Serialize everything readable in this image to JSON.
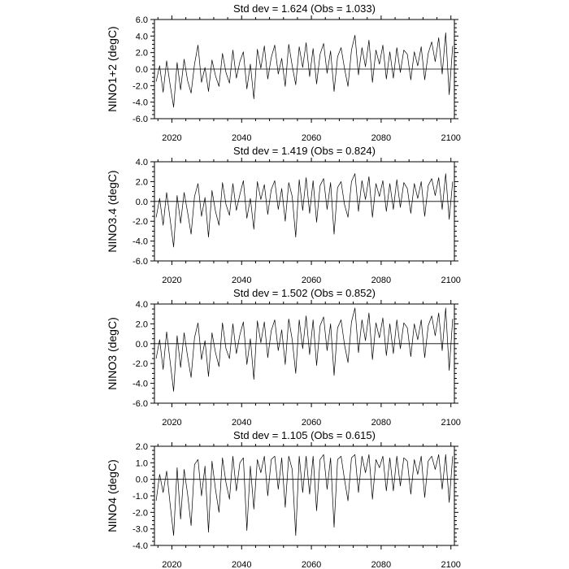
{
  "chart_data": [
    {
      "type": "line",
      "title": "Std dev = 1.624 (Obs = 1.033)",
      "ylabel": "NINO1+2 (degC)",
      "xlabel": "",
      "xlim": [
        2015,
        2101
      ],
      "ylim": [
        -6.0,
        6.0
      ],
      "yticks": [
        -6.0,
        -4.0,
        -2.0,
        0.0,
        2.0,
        4.0,
        6.0
      ],
      "ytick_labels": [
        "-6.0",
        "-4.0",
        "-2.0",
        "0.0",
        "2.0",
        "4.0",
        "6.0"
      ],
      "xticks": [
        2020,
        2040,
        2060,
        2080,
        2100
      ],
      "xtick_labels": [
        "2020",
        "2040",
        "2060",
        "2080",
        "2100"
      ],
      "zero_line": true,
      "x": [
        2015.5,
        2016.5,
        2017.5,
        2018.5,
        2019.5,
        2020.5,
        2021.5,
        2022.5,
        2023.5,
        2024.5,
        2025.5,
        2026.5,
        2027.5,
        2028.5,
        2029.5,
        2030.5,
        2031.5,
        2032.5,
        2033.5,
        2034.5,
        2035.5,
        2036.5,
        2037.5,
        2038.5,
        2039.5,
        2040.5,
        2041.5,
        2042.5,
        2043.5,
        2044.5,
        2045.5,
        2046.5,
        2047.5,
        2048.5,
        2049.5,
        2050.5,
        2051.5,
        2052.5,
        2053.5,
        2054.5,
        2055.5,
        2056.5,
        2057.5,
        2058.5,
        2059.5,
        2060.5,
        2061.5,
        2062.5,
        2063.5,
        2064.5,
        2065.5,
        2066.5,
        2067.5,
        2068.5,
        2069.5,
        2070.5,
        2071.5,
        2072.5,
        2073.5,
        2074.5,
        2075.5,
        2076.5,
        2077.5,
        2078.5,
        2079.5,
        2080.5,
        2081.5,
        2082.5,
        2083.5,
        2084.5,
        2085.5,
        2086.5,
        2087.5,
        2088.5,
        2089.5,
        2090.5,
        2091.5,
        2092.5,
        2093.5,
        2094.5,
        2095.5,
        2096.5,
        2097.5,
        2098.5,
        2099.5,
        2100.5
      ],
      "values": [
        -1.5,
        0.4,
        -2.8,
        1.0,
        -1.9,
        -4.6,
        0.8,
        -2.5,
        1.2,
        -1.4,
        -2.9,
        0.6,
        2.9,
        -1.6,
        0.2,
        -2.7,
        1.1,
        -0.8,
        -2.1,
        1.9,
        -0.4,
        -1.7,
        2.3,
        -1.1,
        0.9,
        2.1,
        -2.4,
        0.6,
        -3.6,
        2.4,
        0.1,
        2.8,
        -1.2,
        1.4,
        2.9,
        -0.6,
        1.3,
        -2.1,
        3.0,
        0.4,
        -1.9,
        2.7,
        0.2,
        3.2,
        -0.9,
        2.5,
        -1.8,
        1.8,
        3.1,
        -0.5,
        2.2,
        -2.7,
        1.5,
        2.6,
        0.1,
        -2.1,
        2.3,
        4.1,
        -0.7,
        2.6,
        0.3,
        3.5,
        -1.6,
        2.3,
        0.6,
        2.9,
        -1.2,
        2.1,
        -1.1,
        2.6,
        -0.4,
        2.3,
        1.8,
        -1.3,
        2.1,
        0.4,
        2.7,
        -1.3,
        1.9,
        3.3,
        0.9,
        3.8,
        -0.6,
        4.4,
        -3.1,
        2.8
      ]
    },
    {
      "type": "line",
      "title": "Std dev = 1.419 (Obs = 0.824)",
      "ylabel": "NINO3.4 (degC)",
      "xlabel": "",
      "xlim": [
        2015,
        2101
      ],
      "ylim": [
        -6.0,
        4.0
      ],
      "yticks": [
        -6.0,
        -4.0,
        -2.0,
        0.0,
        2.0,
        4.0
      ],
      "ytick_labels": [
        "-6.0",
        "-4.0",
        "-2.0",
        "0.0",
        "2.0",
        "4.0"
      ],
      "xticks": [
        2020,
        2040,
        2060,
        2080,
        2100
      ],
      "xtick_labels": [
        "2020",
        "2040",
        "2060",
        "2080",
        "2100"
      ],
      "zero_line": true,
      "x": [
        2015.5,
        2016.5,
        2017.5,
        2018.5,
        2019.5,
        2020.5,
        2021.5,
        2022.5,
        2023.5,
        2024.5,
        2025.5,
        2026.5,
        2027.5,
        2028.5,
        2029.5,
        2030.5,
        2031.5,
        2032.5,
        2033.5,
        2034.5,
        2035.5,
        2036.5,
        2037.5,
        2038.5,
        2039.5,
        2040.5,
        2041.5,
        2042.5,
        2043.5,
        2044.5,
        2045.5,
        2046.5,
        2047.5,
        2048.5,
        2049.5,
        2050.5,
        2051.5,
        2052.5,
        2053.5,
        2054.5,
        2055.5,
        2056.5,
        2057.5,
        2058.5,
        2059.5,
        2060.5,
        2061.5,
        2062.5,
        2063.5,
        2064.5,
        2065.5,
        2066.5,
        2067.5,
        2068.5,
        2069.5,
        2070.5,
        2071.5,
        2072.5,
        2073.5,
        2074.5,
        2075.5,
        2076.5,
        2077.5,
        2078.5,
        2079.5,
        2080.5,
        2081.5,
        2082.5,
        2083.5,
        2084.5,
        2085.5,
        2086.5,
        2087.5,
        2088.5,
        2089.5,
        2090.5,
        2091.5,
        2092.5,
        2093.5,
        2094.5,
        2095.5,
        2096.5,
        2097.5,
        2098.5,
        2099.5,
        2100.5
      ],
      "values": [
        -1.6,
        0.3,
        -2.4,
        0.9,
        -1.8,
        -4.6,
        0.6,
        -2.2,
        0.9,
        -1.1,
        -3.3,
        0.5,
        1.8,
        -1.5,
        0.4,
        -3.6,
        1.1,
        -1.0,
        -2.4,
        1.9,
        -0.3,
        -1.4,
        1.8,
        -0.9,
        0.7,
        2.1,
        -1.7,
        0.3,
        -2.8,
        2.0,
        0.2,
        1.7,
        -1.3,
        1.2,
        2.1,
        -0.8,
        1.3,
        -2.0,
        1.9,
        0.5,
        -3.6,
        2.2,
        -0.9,
        2.4,
        -1.2,
        2.1,
        -2.1,
        1.6,
        2.3,
        -0.8,
        1.9,
        -3.3,
        1.4,
        2.0,
        -0.3,
        -1.6,
        2.0,
        2.8,
        -1.0,
        2.1,
        0.2,
        2.5,
        -1.6,
        1.8,
        0.5,
        2.1,
        -1.0,
        1.8,
        -0.8,
        2.2,
        -0.6,
        1.9,
        1.3,
        -1.2,
        1.8,
        0.3,
        2.0,
        -1.5,
        1.6,
        2.3,
        0.6,
        2.4,
        -0.8,
        2.8,
        -1.8,
        2.0
      ]
    },
    {
      "type": "line",
      "title": "Std dev = 1.502 (Obs = 0.852)",
      "ylabel": "NINO3 (degC)",
      "xlabel": "",
      "xlim": [
        2015,
        2101
      ],
      "ylim": [
        -6.0,
        4.0
      ],
      "yticks": [
        -6.0,
        -4.0,
        -2.0,
        0.0,
        2.0,
        4.0
      ],
      "ytick_labels": [
        "-6.0",
        "-4.0",
        "-2.0",
        "0.0",
        "2.0",
        "4.0"
      ],
      "xticks": [
        2020,
        2040,
        2060,
        2080,
        2100
      ],
      "xtick_labels": [
        "2020",
        "2040",
        "2060",
        "2080",
        "2100"
      ],
      "zero_line": true,
      "x": [
        2015.5,
        2016.5,
        2017.5,
        2018.5,
        2019.5,
        2020.5,
        2021.5,
        2022.5,
        2023.5,
        2024.5,
        2025.5,
        2026.5,
        2027.5,
        2028.5,
        2029.5,
        2030.5,
        2031.5,
        2032.5,
        2033.5,
        2034.5,
        2035.5,
        2036.5,
        2037.5,
        2038.5,
        2039.5,
        2040.5,
        2041.5,
        2042.5,
        2043.5,
        2044.5,
        2045.5,
        2046.5,
        2047.5,
        2048.5,
        2049.5,
        2050.5,
        2051.5,
        2052.5,
        2053.5,
        2054.5,
        2055.5,
        2056.5,
        2057.5,
        2058.5,
        2059.5,
        2060.5,
        2061.5,
        2062.5,
        2063.5,
        2064.5,
        2065.5,
        2066.5,
        2067.5,
        2068.5,
        2069.5,
        2070.5,
        2071.5,
        2072.5,
        2073.5,
        2074.5,
        2075.5,
        2076.5,
        2077.5,
        2078.5,
        2079.5,
        2080.5,
        2081.5,
        2082.5,
        2083.5,
        2084.5,
        2085.5,
        2086.5,
        2087.5,
        2088.5,
        2089.5,
        2090.5,
        2091.5,
        2092.5,
        2093.5,
        2094.5,
        2095.5,
        2096.5,
        2097.5,
        2098.5,
        2099.5,
        2100.5
      ],
      "values": [
        -1.5,
        0.4,
        -2.6,
        1.2,
        -1.8,
        -4.8,
        0.8,
        -2.4,
        1.1,
        -1.3,
        -3.4,
        0.6,
        2.1,
        -1.6,
        0.3,
        -3.3,
        1.1,
        -0.9,
        -2.3,
        2.1,
        -0.5,
        -1.5,
        2.0,
        -1.0,
        0.9,
        2.2,
        -2.1,
        0.5,
        -3.6,
        2.3,
        0.1,
        2.2,
        -1.4,
        1.3,
        2.4,
        -0.7,
        1.4,
        -2.1,
        2.5,
        0.4,
        -3.0,
        2.4,
        -0.5,
        2.8,
        -1.1,
        2.4,
        -2.2,
        1.8,
        2.7,
        -0.7,
        2.0,
        -3.2,
        1.6,
        2.4,
        -0.1,
        -1.9,
        2.2,
        3.6,
        -0.9,
        2.4,
        0.3,
        3.1,
        -1.6,
        2.1,
        0.6,
        2.6,
        -1.2,
        2.0,
        -1.0,
        2.4,
        -0.5,
        2.1,
        1.6,
        -1.3,
        2.0,
        0.4,
        2.4,
        -1.4,
        1.8,
        2.8,
        0.8,
        3.1,
        -0.7,
        3.6,
        -2.7,
        2.5
      ]
    },
    {
      "type": "line",
      "title": "Std dev = 1.105 (Obs = 0.615)",
      "ylabel": "NINO4 (degC)",
      "xlabel": "",
      "xlim": [
        2015,
        2101
      ],
      "ylim": [
        -4.0,
        2.0
      ],
      "yticks": [
        -4.0,
        -3.0,
        -2.0,
        -1.0,
        0.0,
        1.0,
        2.0
      ],
      "ytick_labels": [
        "-4.0",
        "-3.0",
        "-2.0",
        "-1.0",
        "0.0",
        "1.0",
        "2.0"
      ],
      "xticks": [
        2020,
        2040,
        2060,
        2080,
        2100
      ],
      "xtick_labels": [
        "2020",
        "2040",
        "2060",
        "2080",
        "2100"
      ],
      "zero_line": true,
      "x": [
        2015.5,
        2016.5,
        2017.5,
        2018.5,
        2019.5,
        2020.5,
        2021.5,
        2022.5,
        2023.5,
        2024.5,
        2025.5,
        2026.5,
        2027.5,
        2028.5,
        2029.5,
        2030.5,
        2031.5,
        2032.5,
        2033.5,
        2034.5,
        2035.5,
        2036.5,
        2037.5,
        2038.5,
        2039.5,
        2040.5,
        2041.5,
        2042.5,
        2043.5,
        2044.5,
        2045.5,
        2046.5,
        2047.5,
        2048.5,
        2049.5,
        2050.5,
        2051.5,
        2052.5,
        2053.5,
        2054.5,
        2055.5,
        2056.5,
        2057.5,
        2058.5,
        2059.5,
        2060.5,
        2061.5,
        2062.5,
        2063.5,
        2064.5,
        2065.5,
        2066.5,
        2067.5,
        2068.5,
        2069.5,
        2070.5,
        2071.5,
        2072.5,
        2073.5,
        2074.5,
        2075.5,
        2076.5,
        2077.5,
        2078.5,
        2079.5,
        2080.5,
        2081.5,
        2082.5,
        2083.5,
        2084.5,
        2085.5,
        2086.5,
        2087.5,
        2088.5,
        2089.5,
        2090.5,
        2091.5,
        2092.5,
        2093.5,
        2094.5,
        2095.5,
        2096.5,
        2097.5,
        2098.5,
        2099.5,
        2100.5
      ],
      "values": [
        -1.3,
        0.3,
        -0.8,
        0.5,
        -1.5,
        -3.4,
        0.7,
        -2.4,
        0.6,
        -0.9,
        -2.8,
        0.9,
        1.2,
        -1.0,
        0.8,
        -3.2,
        1.1,
        -0.6,
        -2.0,
        1.3,
        -0.2,
        -1.2,
        1.4,
        -0.7,
        1.0,
        1.3,
        -3.1,
        0.8,
        -1.8,
        1.2,
        0.4,
        1.4,
        -1.0,
        1.2,
        1.4,
        -0.6,
        1.3,
        -1.7,
        1.4,
        0.6,
        -3.4,
        1.4,
        -0.8,
        1.4,
        -0.9,
        1.4,
        -1.9,
        1.2,
        1.5,
        -0.6,
        1.3,
        -2.9,
        1.2,
        1.4,
        0.0,
        -1.3,
        1.3,
        1.5,
        -0.8,
        1.4,
        0.4,
        1.5,
        -1.2,
        1.2,
        0.7,
        1.4,
        -0.7,
        1.3,
        -0.7,
        1.4,
        -0.4,
        1.3,
        1.1,
        -0.9,
        1.2,
        0.3,
        1.4,
        -1.1,
        1.1,
        1.4,
        0.6,
        1.5,
        -0.6,
        1.5,
        -1.4,
        1.4
      ]
    }
  ]
}
